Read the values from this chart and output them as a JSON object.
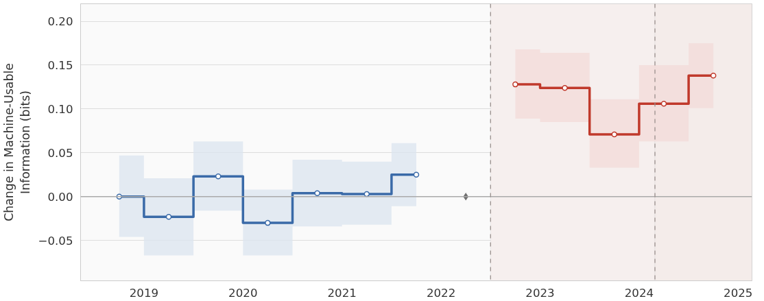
{
  "chart_data": {
    "type": "step",
    "ylabel": "Change in Machine-Usable\nInformation (bits)",
    "xlim": [
      2018.36,
      2025.14
    ],
    "xticks": [
      2019,
      2020,
      2021,
      2022,
      2023,
      2024,
      2025
    ],
    "ylim": [
      -0.096,
      0.22
    ],
    "yticks": [
      {
        "value": -0.05,
        "label": "−0.05"
      },
      {
        "value": 0,
        "label": "0.00"
      },
      {
        "value": 0.05,
        "label": "0.05"
      },
      {
        "value": 0.1,
        "label": "0.10"
      },
      {
        "value": 0.15,
        "label": "0.15"
      },
      {
        "value": 0.2,
        "label": "0.20"
      }
    ],
    "grid": "y",
    "marker": "circle",
    "series": [
      {
        "color": "#3a6aa8",
        "x": [
          2018.75,
          2019.25,
          2019.75,
          2020.25,
          2020.75,
          2021.25,
          2021.75
        ],
        "values": [
          0.0,
          -0.023,
          0.023,
          -0.03,
          0.004,
          0.003,
          0.025
        ],
        "lower": [
          -0.046,
          -0.067,
          -0.016,
          -0.067,
          -0.034,
          -0.032,
          -0.011
        ],
        "upper": [
          0.047,
          0.021,
          0.063,
          0.008,
          0.042,
          0.04,
          0.061
        ]
      },
      {
        "type": "scatter",
        "marker": "diamond",
        "color": "#707070",
        "x": [
          2022.25
        ],
        "values": [
          0.0
        ]
      },
      {
        "color": "#c0392b",
        "x": [
          2022.75,
          2023.25,
          2023.75,
          2024.25,
          2024.75
        ],
        "values": [
          0.128,
          0.124,
          0.071,
          0.106,
          0.138
        ],
        "lower": [
          0.089,
          0.085,
          0.033,
          0.063,
          0.101
        ],
        "upper": [
          0.168,
          0.164,
          0.111,
          0.15,
          0.175
        ]
      }
    ],
    "bands": [
      {
        "axis": "x",
        "from": 2022.5,
        "to": 2024.16,
        "color": "#f6efee"
      },
      {
        "axis": "x",
        "from": 2024.16,
        "to": 2025.14,
        "color": "#f4ecea"
      }
    ],
    "ref_lines": [
      {
        "axis": "y",
        "value": 0,
        "color": "#aaaaaa"
      },
      {
        "axis": "x",
        "value": 2022.5,
        "color": "#9a8f8c",
        "line_style": "dashed"
      },
      {
        "axis": "x",
        "value": 2024.16,
        "color": "#9a8f8c",
        "line_style": "dashed"
      }
    ]
  }
}
